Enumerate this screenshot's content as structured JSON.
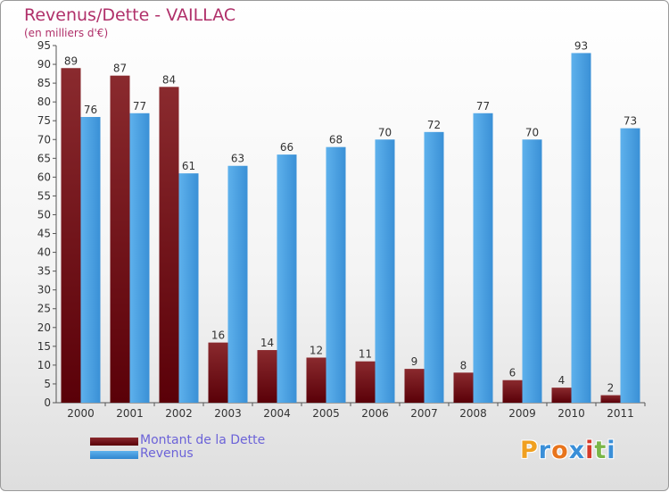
{
  "title": "Revenus/Dette - VAILLAC",
  "subtitle": "(en milliers d'€)",
  "logo": "Proxiti",
  "colors": {
    "dette_dark": "#5a0008",
    "dette_light": "#8a2a2e",
    "revenus_dark": "#2f86cf",
    "revenus_light": "#5eb1ec",
    "title": "#b0306a",
    "legend_text": "#6c63d8"
  },
  "chart_data": {
    "type": "bar",
    "categories": [
      "2000",
      "2001",
      "2002",
      "2003",
      "2004",
      "2005",
      "2006",
      "2007",
      "2008",
      "2009",
      "2010",
      "2011"
    ],
    "series": [
      {
        "name": "Montant de la Dette",
        "values": [
          89,
          87,
          84,
          16,
          14,
          12,
          11,
          9,
          8,
          6,
          4,
          2
        ]
      },
      {
        "name": "Revenus",
        "values": [
          76,
          77,
          61,
          63,
          66,
          68,
          70,
          72,
          77,
          70,
          93,
          73
        ]
      }
    ],
    "ylim": [
      0,
      95
    ],
    "yticks": [
      0,
      5,
      10,
      15,
      20,
      25,
      30,
      35,
      40,
      45,
      50,
      55,
      60,
      65,
      70,
      75,
      80,
      85,
      90,
      95
    ],
    "grid": false,
    "legend_position": "bottom-left"
  }
}
